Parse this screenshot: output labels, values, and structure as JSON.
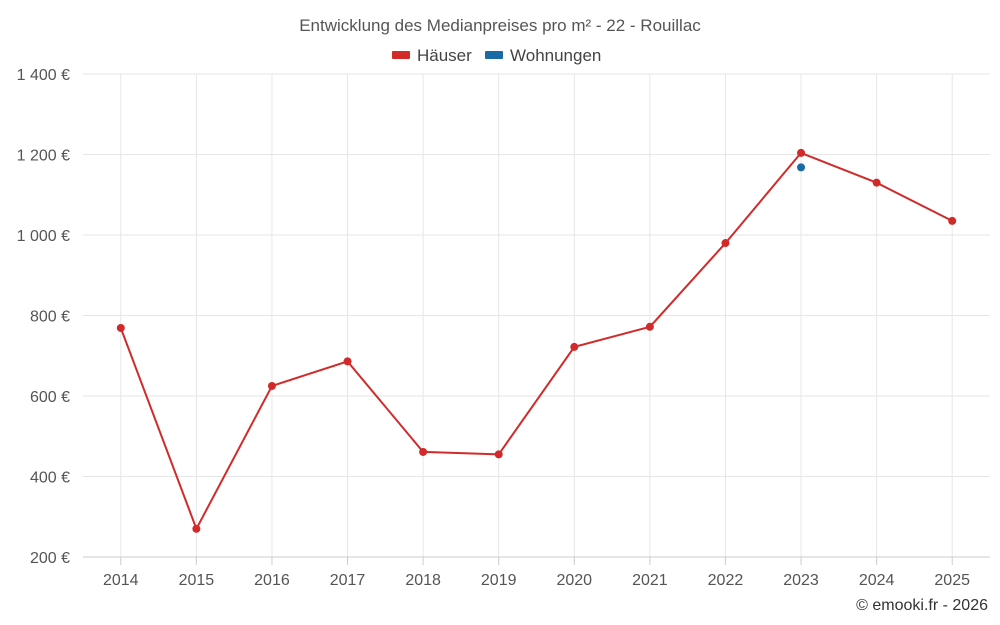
{
  "chart_data": {
    "type": "line",
    "title": "Entwicklung des Medianpreises pro m² - 22 - Rouillac",
    "categories": [
      "2014",
      "2015",
      "2016",
      "2017",
      "2018",
      "2019",
      "2020",
      "2021",
      "2022",
      "2023",
      "2024",
      "2025"
    ],
    "series": [
      {
        "name": "Häuser",
        "color": "#d22a2a",
        "values": [
          769,
          270,
          625,
          686,
          461,
          455,
          722,
          772,
          980,
          1204,
          1130,
          1035
        ]
      },
      {
        "name": "Wohnungen",
        "color": "#1a6aa6",
        "values": [
          null,
          null,
          null,
          null,
          null,
          null,
          null,
          null,
          null,
          1168,
          null,
          null
        ]
      }
    ],
    "ylim": [
      200,
      1400
    ],
    "yticks": [
      200,
      400,
      600,
      800,
      1000,
      1200,
      1400
    ],
    "ytick_labels": [
      "200 €",
      "400 €",
      "600 €",
      "800 €",
      "1 000 €",
      "1 200 €",
      "1 400 €"
    ],
    "legend_position": "top-center",
    "grid": true
  },
  "credit": "© emooki.fr - 2026"
}
